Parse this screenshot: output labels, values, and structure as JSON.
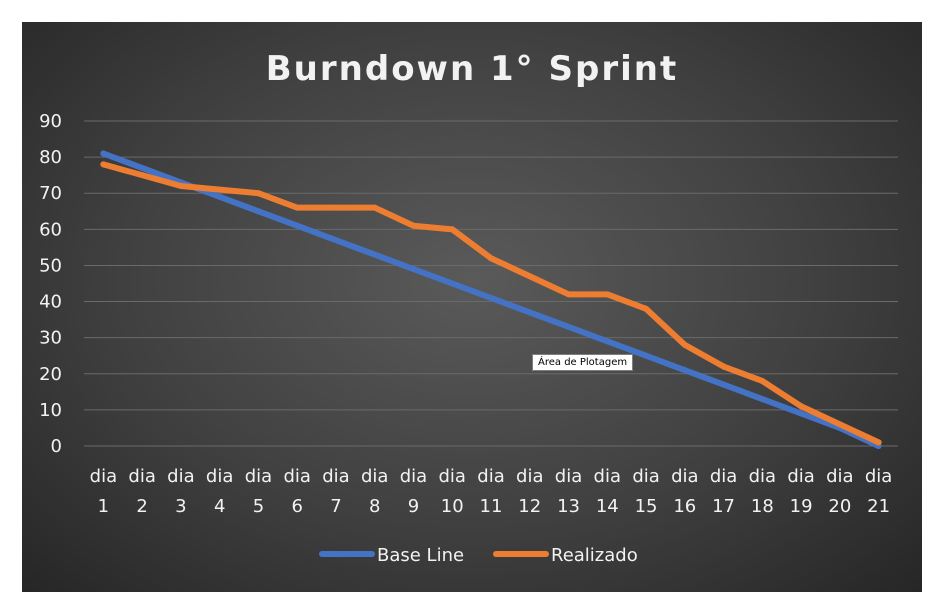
{
  "chart_data": {
    "type": "line",
    "title": "Burndown 1° Sprint",
    "categories": [
      "dia 1",
      "dia 2",
      "dia 3",
      "dia 4",
      "dia 5",
      "dia 6",
      "dia 7",
      "dia 8",
      "dia 9",
      "dia 10",
      "dia 11",
      "dia 12",
      "dia 13",
      "dia 14",
      "dia 15",
      "dia 16",
      "dia 17",
      "dia 18",
      "dia 19",
      "dia 20",
      "dia 21"
    ],
    "ylim": [
      0,
      90
    ],
    "yticks": [
      0,
      10,
      20,
      30,
      40,
      50,
      60,
      70,
      80,
      90
    ],
    "grid": true,
    "legend_position": "bottom",
    "series": [
      {
        "name": "Base Line",
        "color": "#4472c4",
        "values": [
          81,
          77,
          73,
          69,
          65,
          61,
          57,
          53,
          49,
          45,
          41,
          37,
          33,
          29,
          25,
          21,
          17,
          13,
          9,
          5,
          0
        ]
      },
      {
        "name": "Realizado",
        "color": "#ed7d31",
        "values": [
          78,
          75,
          72,
          71,
          70,
          66,
          66,
          66,
          61,
          60,
          52,
          47,
          42,
          42,
          38,
          28,
          22,
          18,
          11,
          6,
          1
        ]
      }
    ]
  },
  "tooltip": {
    "text": "Área de Plotagem"
  },
  "colors": {
    "text": "#f2f2f2",
    "grid": "#6a6a6a"
  }
}
